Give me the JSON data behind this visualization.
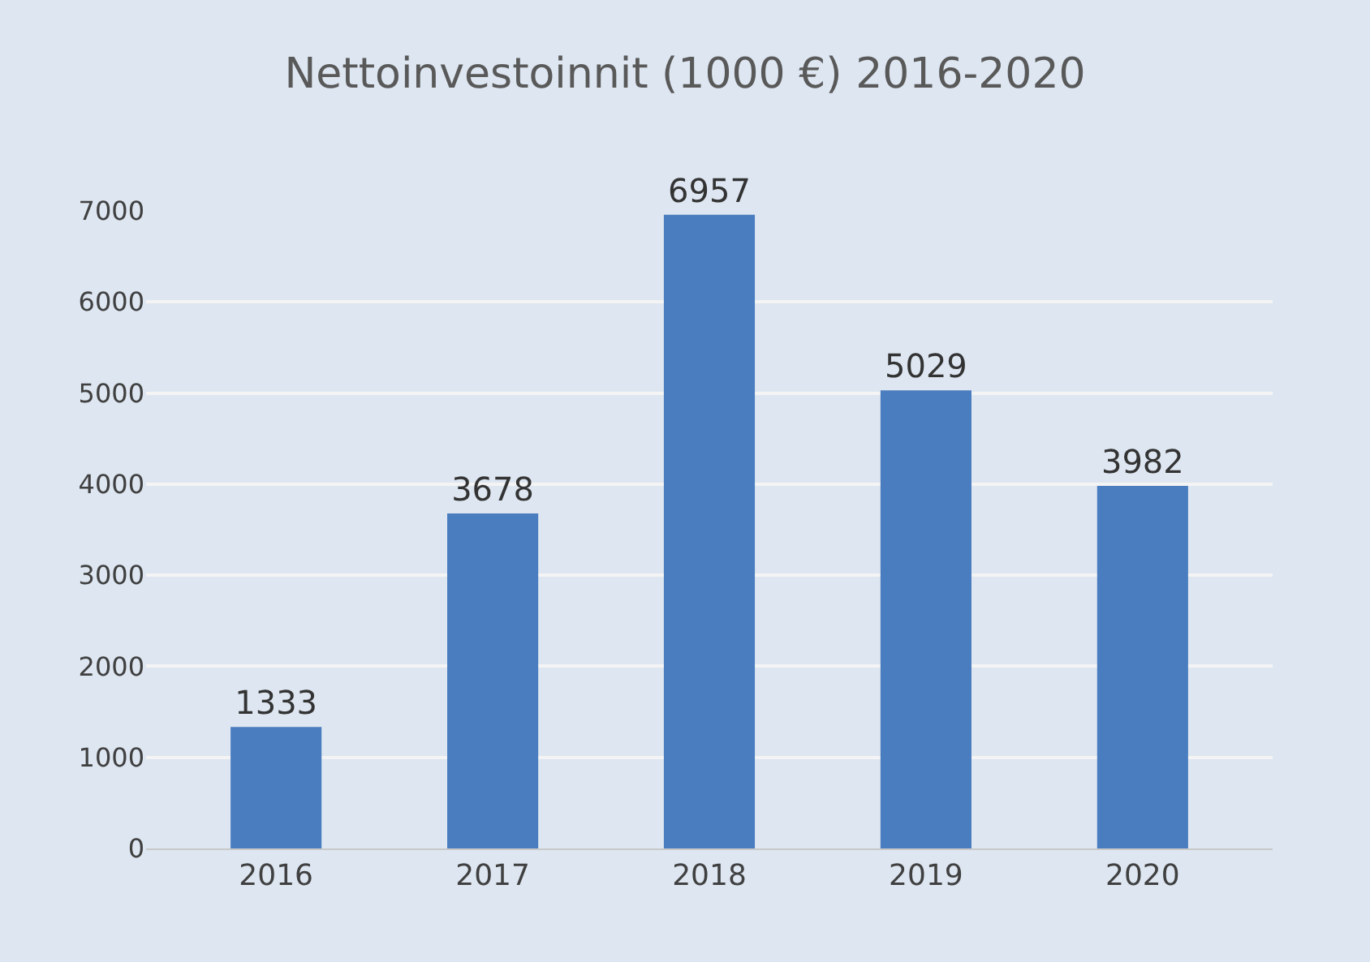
{
  "chart_data": {
    "type": "bar",
    "title": "Nettoinvestoinnit (1000 €) 2016-2020",
    "categories": [
      "2016",
      "2017",
      "2018",
      "2019",
      "2020"
    ],
    "values": [
      1333,
      3678,
      6957,
      5029,
      3982
    ],
    "color": "#4a7dbf",
    "ylim": [
      0,
      7000
    ],
    "yticks": [
      0,
      1000,
      2000,
      3000,
      4000,
      5000,
      6000,
      7000
    ],
    "grid": "y",
    "data_labels": true
  }
}
